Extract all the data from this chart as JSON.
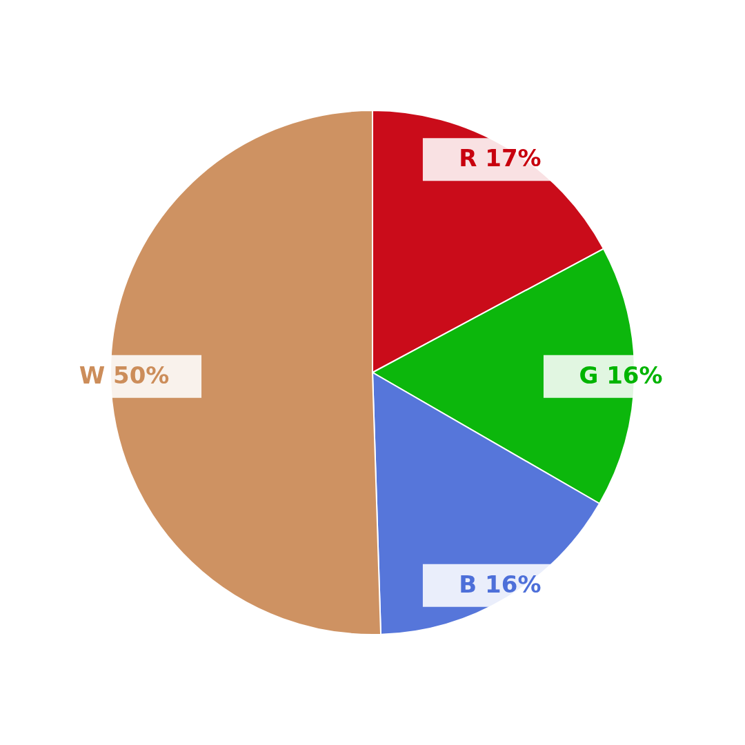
{
  "chart_data": {
    "type": "pie",
    "categories": [
      "R",
      "G",
      "B",
      "W"
    ],
    "values": [
      17,
      16,
      16,
      50
    ],
    "colors": [
      "#c8000e",
      "#00b400",
      "#4d6fd9",
      "#cc8d5a"
    ],
    "value_labels": [
      "17%",
      "16%",
      "16%",
      "50%"
    ]
  }
}
